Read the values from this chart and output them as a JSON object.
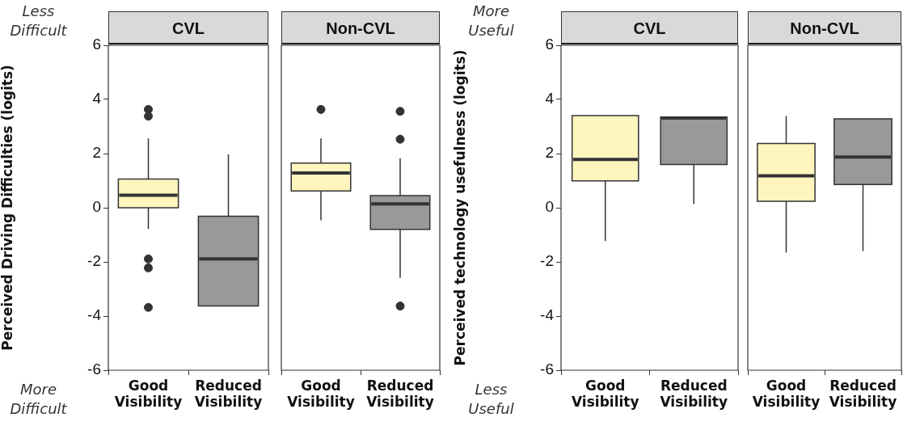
{
  "chart_data": [
    {
      "type": "box",
      "title": "CVL",
      "ylabel": "Perceived Driving Difficulties (logits)",
      "annotations": [
        "Less Difficult",
        "More Difficult"
      ],
      "categories": [
        "Good Visibility",
        "Reduced Visibility"
      ],
      "colors": [
        "#fff5bf",
        "#999999"
      ],
      "ylim": [
        -6,
        6
      ],
      "yticks": [
        -6,
        -4,
        -2,
        0,
        2,
        4,
        6
      ],
      "boxes": [
        {
          "low": -0.78,
          "q1": 0,
          "median": 0.46,
          "q3": 1.06,
          "high": 2.56,
          "outliers": [
            3.63,
            3.38,
            -1.89,
            -2.22,
            -3.68
          ]
        },
        {
          "low": -3.63,
          "q1": -3.63,
          "median": -1.89,
          "q3": -0.31,
          "high": 1.97
        }
      ]
    },
    {
      "type": "box",
      "title": "Non-CVL",
      "categories": [
        "Good Visibility",
        "Reduced Visibility"
      ],
      "colors": [
        "#fff5bf",
        "#999999"
      ],
      "ylim": [
        -6,
        6
      ],
      "yticks": [
        -6,
        -4,
        -2,
        0,
        2,
        4,
        6
      ],
      "tick_labels": "x",
      "boxes": [
        {
          "low": -0.46,
          "q1": 0.62,
          "median": 1.28,
          "q3": 1.65,
          "high": 2.56,
          "outliers": [
            3.63
          ]
        },
        {
          "low": -2.59,
          "q1": -0.8,
          "median": 0.14,
          "q3": 0.45,
          "high": 1.83,
          "outliers": [
            3.56,
            2.53,
            -3.63
          ]
        }
      ]
    },
    {
      "type": "box",
      "title": "CVL",
      "ylabel": "Perceived technology usefulness (logits)",
      "annotations": [
        "More Useful",
        "Less Useful"
      ],
      "categories": [
        "Good Visibility",
        "Reduced Visibility"
      ],
      "colors": [
        "#fff5bf",
        "#999999"
      ],
      "ylim": [
        -6,
        6
      ],
      "yticks": [
        -6,
        -4,
        -2,
        0,
        2,
        4,
        6
      ],
      "boxes": [
        {
          "low": -1.23,
          "q1": 0.99,
          "median": 1.78,
          "q3": 3.4,
          "high": 3.4
        },
        {
          "low": 0.14,
          "q1": 1.6,
          "median": 3.31,
          "q3": 3.35,
          "high": 3.35
        }
      ]
    },
    {
      "type": "box",
      "title": "Non-CVL",
      "categories": [
        "Good Visibility",
        "Reduced Visibility"
      ],
      "colors": [
        "#fff5bf",
        "#999999"
      ],
      "ylim": [
        -6,
        6
      ],
      "yticks": [
        -6,
        -4,
        -2,
        0,
        2,
        4,
        6
      ],
      "tick_labels": "x",
      "boxes": [
        {
          "low": -1.66,
          "q1": 0.24,
          "median": 1.18,
          "q3": 2.37,
          "high": 3.39
        },
        {
          "low": -1.6,
          "q1": 0.86,
          "median": 1.87,
          "q3": 3.28,
          "high": 3.28
        }
      ]
    }
  ]
}
